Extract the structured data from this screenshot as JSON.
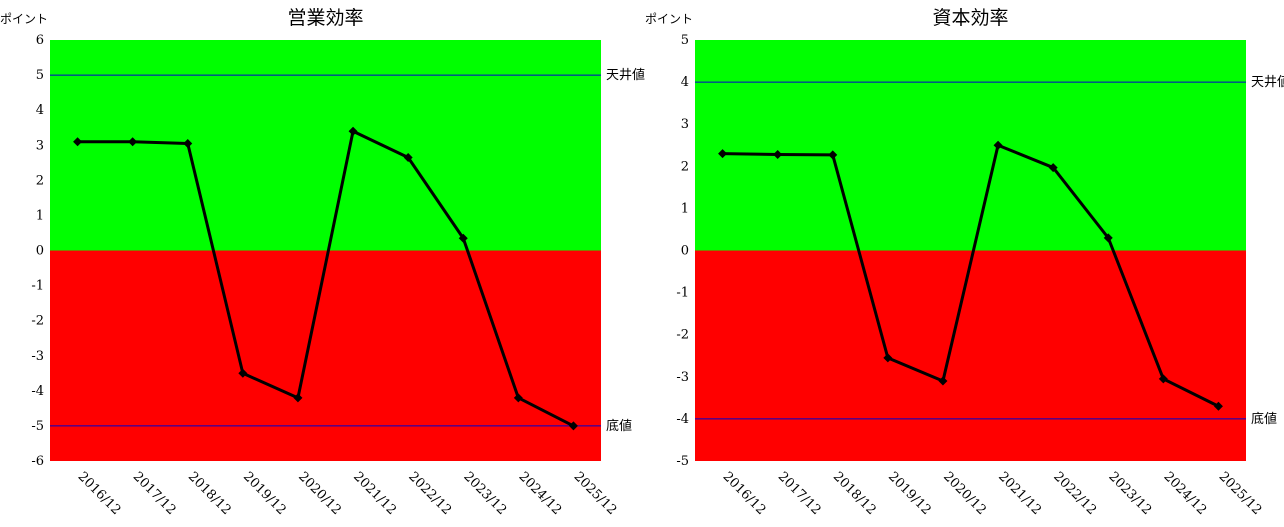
{
  "colors": {
    "positive_zone": "#00ff00",
    "negative_zone": "#ff0000",
    "reference_line": "#0000cc",
    "series_line": "#000000"
  },
  "chart_data": [
    {
      "type": "line",
      "title": "営業効率",
      "y_unit": "ポイント",
      "ylim": [
        -6,
        6
      ],
      "y_ticks": [
        6,
        5,
        4,
        3,
        2,
        1,
        0,
        -1,
        -2,
        -3,
        -4,
        -5,
        -6
      ],
      "categories": [
        "2016/12",
        "2017/12",
        "2018/12",
        "2019/12",
        "2020/12",
        "2021/12",
        "2022/12",
        "2023/12",
        "2024/12",
        "2025/12"
      ],
      "values": [
        3.1,
        3.1,
        3.05,
        -3.5,
        -4.2,
        3.4,
        2.65,
        0.35,
        -4.2,
        -5.0
      ],
      "ceiling": {
        "label": "天井値",
        "value": 5
      },
      "floor": {
        "label": "底値",
        "value": -5
      }
    },
    {
      "type": "line",
      "title": "資本効率",
      "y_unit": "ポイント",
      "ylim": [
        -5,
        5
      ],
      "y_ticks": [
        5,
        4,
        3,
        2,
        1,
        0,
        -1,
        -2,
        -3,
        -4,
        -5
      ],
      "categories": [
        "2016/12",
        "2017/12",
        "2018/12",
        "2019/12",
        "2020/12",
        "2021/12",
        "2022/12",
        "2023/12",
        "2024/12",
        "2025/12"
      ],
      "values": [
        2.3,
        2.28,
        2.27,
        -2.55,
        -3.1,
        2.5,
        1.97,
        0.3,
        -3.05,
        -3.7
      ],
      "ceiling": {
        "label": "天井値",
        "value": 4
      },
      "floor": {
        "label": "底値",
        "value": -4
      }
    }
  ]
}
